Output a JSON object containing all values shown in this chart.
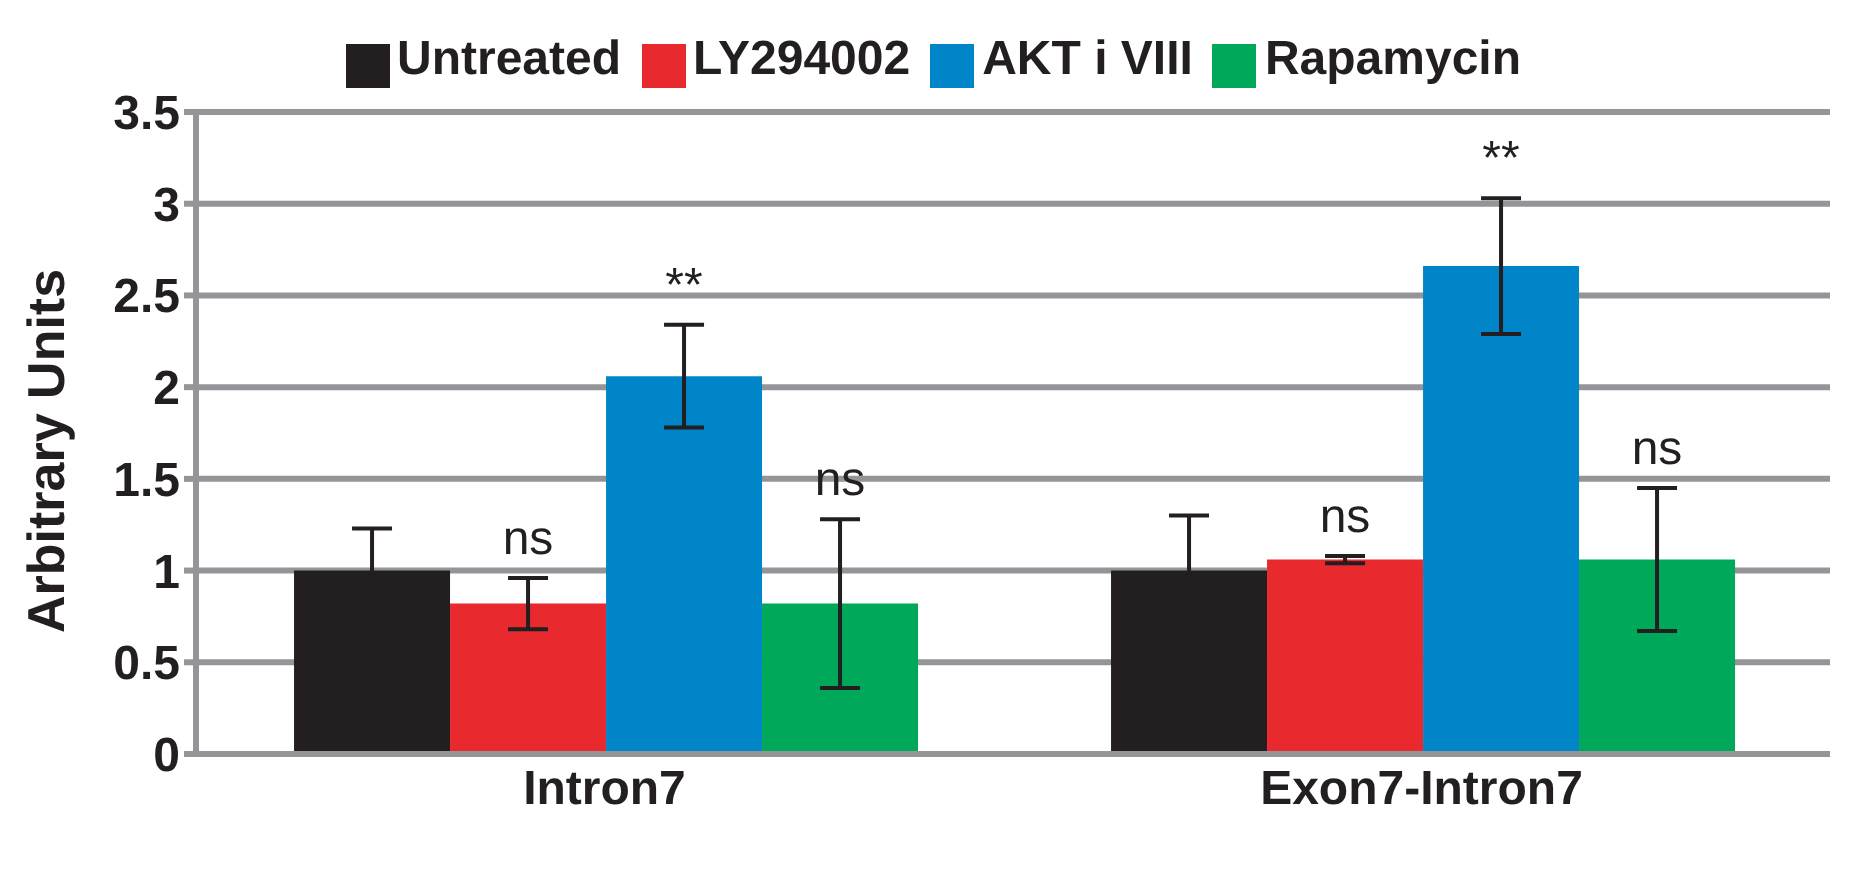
{
  "chart_data": {
    "type": "bar",
    "ylabel": "Arbitrary Units",
    "categories": [
      "Intron7",
      "Exon7-Intron7"
    ],
    "series": [
      {
        "name": "Untreated",
        "color": "#231f20",
        "values": [
          1.0,
          1.0
        ],
        "errors": [
          0.23,
          0.3
        ]
      },
      {
        "name": "LY294002",
        "color": "#e8292e",
        "values": [
          0.82,
          1.06
        ],
        "errors": [
          0.14,
          0.02
        ],
        "value_labels": [
          "ns",
          "ns"
        ]
      },
      {
        "name": "AKT i VIII",
        "color": "#0086c8",
        "values": [
          2.06,
          2.66
        ],
        "errors": [
          0.28,
          0.37
        ],
        "value_labels": [
          "**",
          "**"
        ]
      },
      {
        "name": "Rapamycin",
        "color": "#00a85a",
        "values": [
          0.82,
          1.06
        ],
        "errors": [
          0.46,
          0.39
        ],
        "value_labels": [
          "ns",
          "ns"
        ]
      }
    ],
    "ylim": [
      0,
      3.5
    ],
    "yticks": [
      0,
      0.5,
      1,
      1.5,
      2,
      2.5,
      3,
      3.5
    ],
    "grid": "y",
    "legend": "top"
  }
}
